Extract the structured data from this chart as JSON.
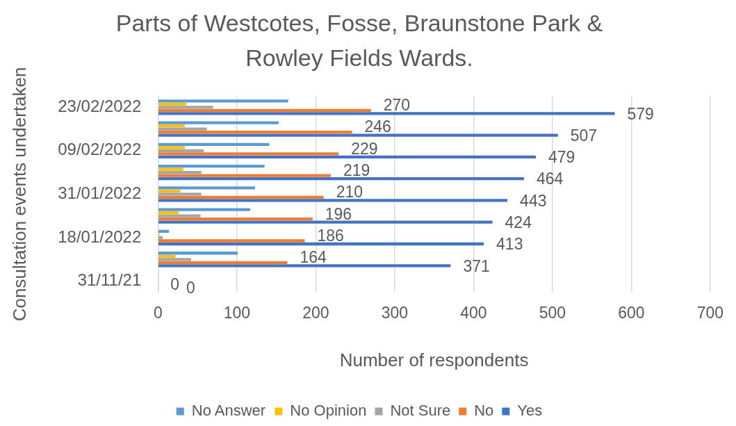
{
  "chart_data": {
    "type": "bar",
    "orientation": "horizontal",
    "title": "Parts of Westcotes, Fosse, Braunstone Park & Rowley Fields Wards.",
    "xlabel": "Number of respondents",
    "ylabel": "Consultation events undertaken",
    "categories": [
      "23/02/2022",
      null,
      "09/02/2022",
      null,
      "31/01/2022",
      null,
      "18/01/2022",
      null,
      "31/11/21"
    ],
    "series": [
      {
        "name": "No Answer",
        "color": "#5b9bd5",
        "values": [
          165,
          153,
          141,
          135,
          123,
          117,
          14,
          101,
          0
        ]
      },
      {
        "name": "No Opinion",
        "color": "#ffc000",
        "values": [
          36,
          34,
          34,
          32,
          28,
          26,
          2,
          22,
          0
        ]
      },
      {
        "name": "Not Sure",
        "color": "#a5a5a5",
        "values": [
          70,
          62,
          58,
          55,
          55,
          54,
          6,
          42,
          0
        ]
      },
      {
        "name": "No",
        "color": "#ed7d31",
        "values": [
          270,
          246,
          229,
          219,
          210,
          196,
          186,
          164,
          0
        ],
        "value_labels": [
          "270",
          "246",
          "229",
          "219",
          "210",
          "196",
          "186",
          "164",
          "0"
        ]
      },
      {
        "name": "Yes",
        "color": "#4472c4",
        "values": [
          579,
          507,
          479,
          464,
          443,
          424,
          413,
          371,
          0
        ],
        "value_labels": [
          "579",
          "507",
          "479",
          "464",
          "443",
          "424",
          "413",
          "371",
          "0"
        ]
      }
    ],
    "xlim": [
      0,
      700
    ],
    "xticks": [
      0,
      100,
      200,
      300,
      400,
      500,
      600,
      700
    ],
    "grid": "x",
    "legend": "bottom"
  }
}
